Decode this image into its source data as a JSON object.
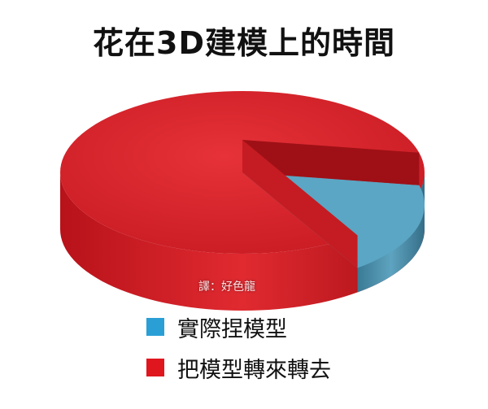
{
  "chart_data": {
    "type": "pie",
    "title": "花在3D建模上的時間",
    "slices": [
      {
        "label": "實際捏模型",
        "value": 18,
        "color": "#2a9fd6"
      },
      {
        "label": "把模型轉來轉去",
        "value": 82,
        "color": "#e0161e"
      }
    ],
    "legend_position": "bottom"
  },
  "watermark": "譯：好色龍"
}
